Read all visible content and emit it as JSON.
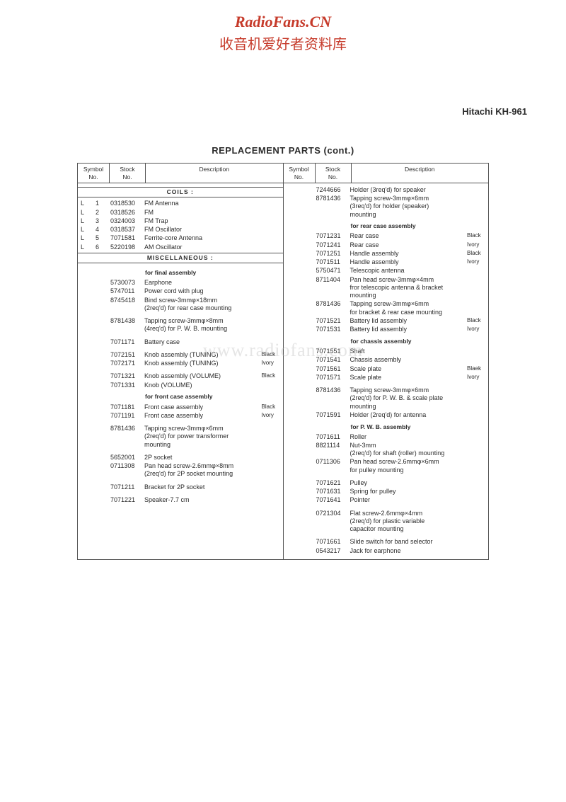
{
  "watermark": {
    "line1": "RadioFans.CN",
    "line2": "收音机爱好者资料库",
    "mid": "www.radiofans.com"
  },
  "model": "Hitachi KH-961",
  "title": "REPLACEMENT PARTS (cont.)",
  "headers": {
    "sym": "Symbol\nNo.",
    "stock": "Stock\nNo.",
    "desc": "Description"
  },
  "sections": {
    "coils": "COILS :",
    "misc": "MISCELLANEOUS :",
    "final": "for final assembly",
    "front": "for front case assembly",
    "rear": "for rear case assembly",
    "chassis": "for chassis assembly",
    "pwb": "for P. W. B. assembly"
  },
  "left": {
    "coils": [
      {
        "s1": "L",
        "s2": "1",
        "stk": "0318530",
        "d": "FM Antenna"
      },
      {
        "s1": "L",
        "s2": "2",
        "stk": "0318526",
        "d": "FM"
      },
      {
        "s1": "L",
        "s2": "3",
        "stk": "0324003",
        "d": "FM Trap"
      },
      {
        "s1": "L",
        "s2": "4",
        "stk": "0318537",
        "d": "FM Oscillator"
      },
      {
        "s1": "L",
        "s2": "5",
        "stk": "7071581",
        "d": "Ferrite-core Antenna"
      },
      {
        "s1": "L",
        "s2": "6",
        "stk": "5220198",
        "d": "AM Oscillator"
      }
    ],
    "final": [
      {
        "stk": "5730073",
        "d": "Earphone"
      },
      {
        "stk": "5747011",
        "d": "Power cord with plug"
      },
      {
        "stk": "8745418",
        "d": "Bind screw-3mmφ×18mm\n(2req'd) for rear case mounting"
      },
      {
        "sp": true
      },
      {
        "stk": "8781438",
        "d": "Tapping screw-3mmφ×8mm\n(4req'd) for P. W. B. mounting"
      },
      {
        "sp": true
      },
      {
        "stk": "7071171",
        "d": "Battery case"
      },
      {
        "sp": true
      },
      {
        "stk": "7072151",
        "d": "Knob assembly (TUNING)",
        "n": "Black"
      },
      {
        "stk": "7072171",
        "d": "Knob assembly (TUNING)",
        "n": "Ivory"
      },
      {
        "sp": true
      },
      {
        "stk": "7071321",
        "d": "Knob assembly (VOLUME)",
        "n": "Black"
      },
      {
        "stk": "7071331",
        "d": "Knob (VOLUME)"
      }
    ],
    "front": [
      {
        "stk": "7071181",
        "d": "Front case assembly",
        "n": "Black"
      },
      {
        "stk": "7071191",
        "d": "Front case assembly",
        "n": "Ivory"
      },
      {
        "sp": true
      },
      {
        "stk": "8781436",
        "d": "Tapping screw-3mmφ×6mm\n(2req'd) for power transformer\nmounting"
      },
      {
        "sp": true
      },
      {
        "stk": "5652001",
        "d": "2P socket"
      },
      {
        "stk": "0711308",
        "d": "Pan head screw-2.6mmφ×8mm\n(2req'd) for 2P socket mounting"
      },
      {
        "sp": true
      },
      {
        "stk": "7071211",
        "d": "Bracket for 2P socket"
      },
      {
        "sp": true
      },
      {
        "stk": "7071221",
        "d": "Speaker-7.7 cm"
      }
    ]
  },
  "right": {
    "top": [
      {
        "stk": "7244666",
        "d": "Holder (3req'd) for speaker"
      },
      {
        "stk": "8781436",
        "d": "Tapping screw-3mmφ×6mm\n(3req'd) for holder (speaker)\nmounting"
      }
    ],
    "rear": [
      {
        "stk": "7071231",
        "d": "Rear case",
        "n": "Black"
      },
      {
        "stk": "7071241",
        "d": "Rear case",
        "n": "Ivory"
      },
      {
        "stk": "7071251",
        "d": "Handle assembly",
        "n": "Black"
      },
      {
        "stk": "7071511",
        "d": "Handle assembly",
        "n": "Ivory"
      },
      {
        "stk": "5750471",
        "d": "Telescopic antenna"
      },
      {
        "stk": "8711404",
        "d": "Pan head screw-3mmφ×4mm\nfror telescopic antenna & bracket\nmounting"
      },
      {
        "stk": "8781436",
        "d": "Tapping screw-3mmφ×6mm\nfor bracket & rear case mounting"
      },
      {
        "stk": "7071521",
        "d": "Battery lid assembly",
        "n": "Black"
      },
      {
        "stk": "7071531",
        "d": "Battery lid assembly",
        "n": "Ivory"
      }
    ],
    "chassis": [
      {
        "stk": "7071551",
        "d": "Shaft"
      },
      {
        "stk": "7071541",
        "d": "Chassis assembly"
      },
      {
        "stk": "7071561",
        "d": "Scale plate",
        "n": "Blaek"
      },
      {
        "stk": "7071571",
        "d": "Scale plate",
        "n": "Ivory"
      },
      {
        "sp": true
      },
      {
        "stk": "8781436",
        "d": "Tapping screw-3mmφ×6mm\n(2req'd) for P. W. B. & scale plate\nmounting"
      },
      {
        "stk": "7071591",
        "d": "Holder (2req'd) for antenna"
      }
    ],
    "pwb": [
      {
        "stk": "7071611",
        "d": "Roller"
      },
      {
        "stk": "8821114",
        "d": "Nut-3mm\n(2req'd) for shaft (roller) mounting"
      },
      {
        "stk": "0711306",
        "d": "Pan head screw-2.6mmφ×6mm\nfor pulley mounting"
      },
      {
        "sp": true
      },
      {
        "stk": "7071621",
        "d": "Pulley"
      },
      {
        "stk": "7071631",
        "d": "Spring for pulley"
      },
      {
        "stk": "7071641",
        "d": "Pointer"
      },
      {
        "sp": true
      },
      {
        "stk": "0721304",
        "d": "Flat screw-2.6mmφ×4mm\n(2req'd) for plastic variable\ncapacitor mounting"
      },
      {
        "sp": true
      },
      {
        "stk": "7071661",
        "d": "Slide switch for band selector"
      },
      {
        "stk": "0543217",
        "d": "Jack for earphone"
      }
    ]
  }
}
